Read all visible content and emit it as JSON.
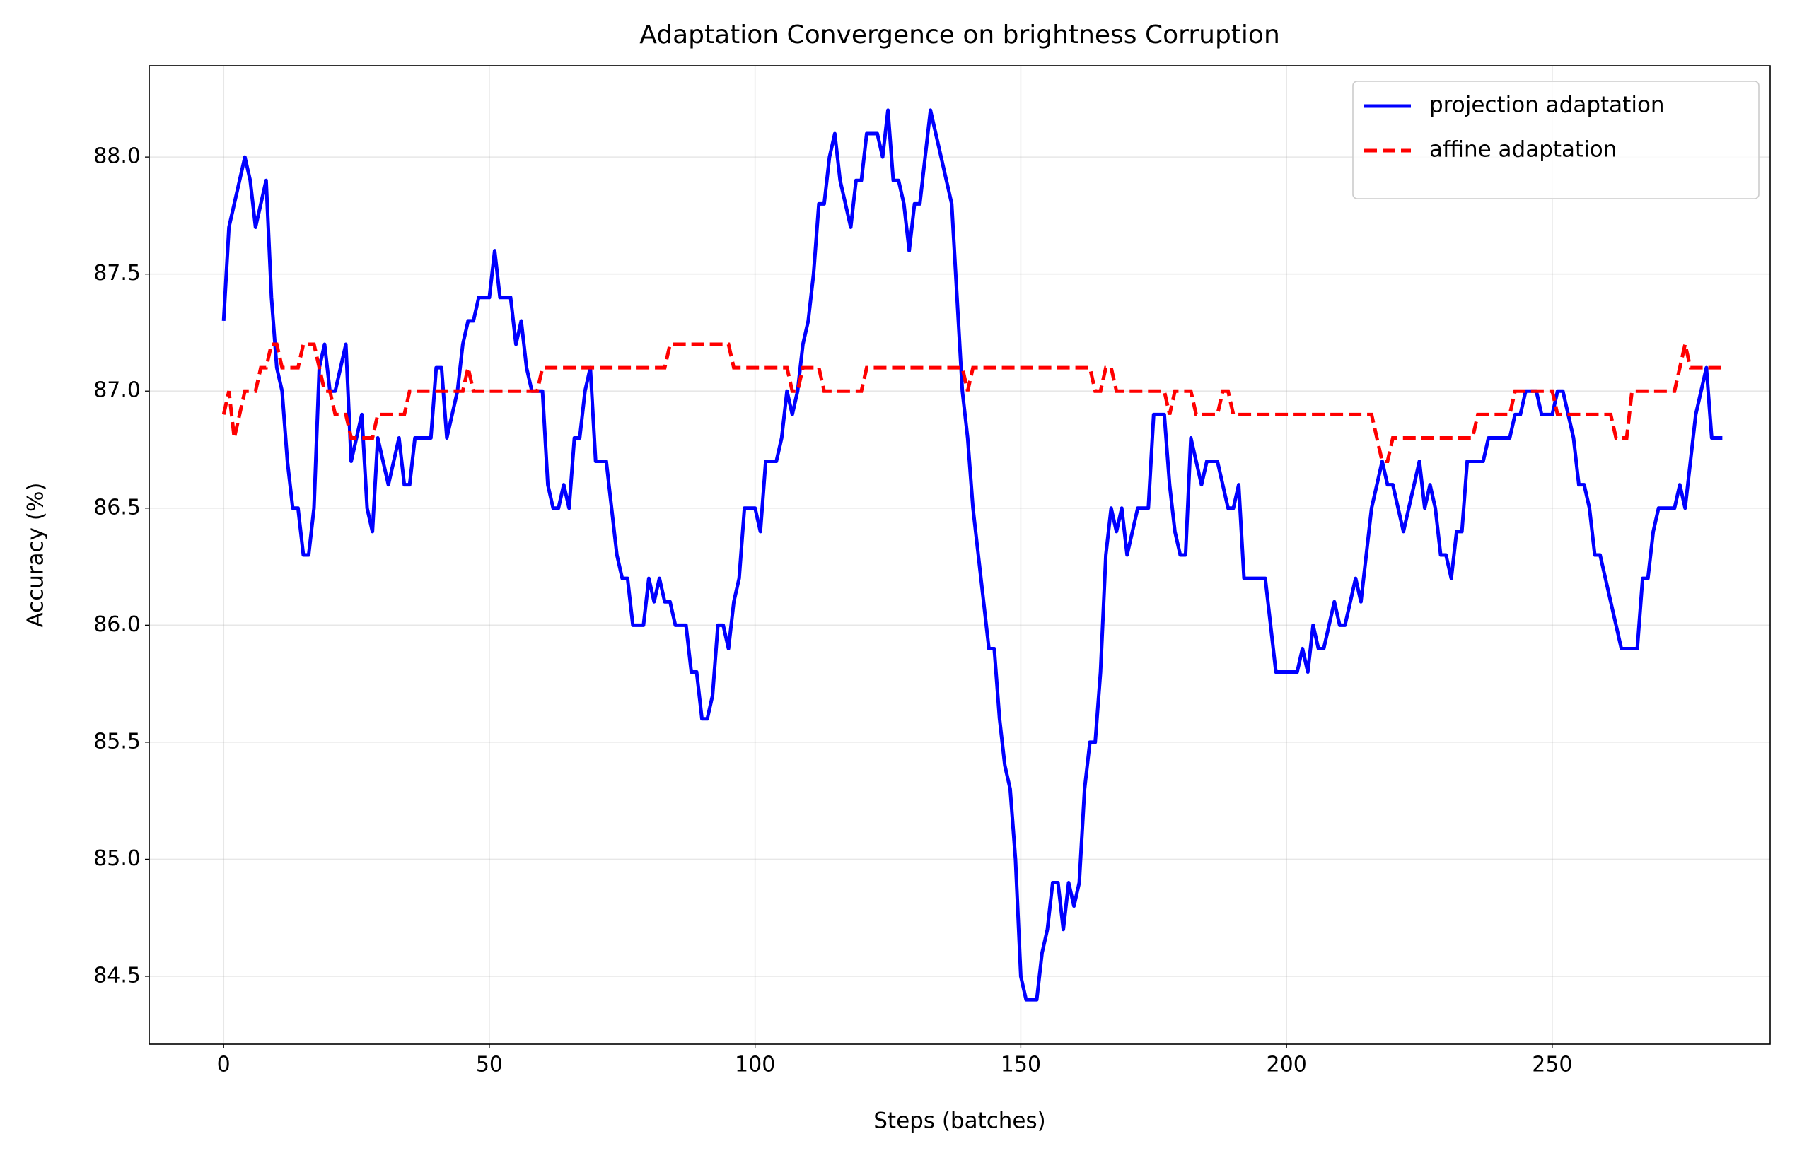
{
  "chart_data": {
    "type": "line",
    "title": "Adaptation Convergence on brightness Corruption",
    "xlabel": "Steps (batches)",
    "ylabel": "Accuracy (%)",
    "x": [
      0,
      1,
      2,
      3,
      4,
      5,
      6,
      7,
      8,
      9,
      10,
      11,
      12,
      13,
      14,
      15,
      16,
      17,
      18,
      19,
      20,
      21,
      22,
      23,
      24,
      25,
      26,
      27,
      28,
      29,
      30,
      31,
      32,
      33,
      34,
      35,
      36,
      37,
      38,
      39,
      40,
      41,
      42,
      43,
      44,
      45,
      46,
      47,
      48,
      49,
      50,
      51,
      52,
      53,
      54,
      55,
      56,
      57,
      58,
      59,
      60,
      61,
      62,
      63,
      64,
      65,
      66,
      67,
      68,
      69,
      70,
      71,
      72,
      73,
      74,
      75,
      76,
      77,
      78,
      79,
      80,
      81,
      82,
      83,
      84,
      85,
      86,
      87,
      88,
      89,
      90,
      91,
      92,
      93,
      94,
      95,
      96,
      97,
      98,
      99,
      100,
      101,
      102,
      103,
      104,
      105,
      106,
      107,
      108,
      109,
      110,
      111,
      112,
      113,
      114,
      115,
      116,
      117,
      118,
      119,
      120,
      121,
      122,
      123,
      124,
      125,
      126,
      127,
      128,
      129,
      130,
      131,
      132,
      133,
      134,
      135,
      136,
      137,
      138,
      139,
      140,
      141,
      142,
      143,
      144,
      145,
      146,
      147,
      148,
      149,
      150,
      151,
      152,
      153,
      154,
      155,
      156,
      157,
      158,
      159,
      160,
      161,
      162,
      163,
      164,
      165,
      166,
      167,
      168,
      169,
      170,
      171,
      172,
      173,
      174,
      175,
      176,
      177,
      178,
      179,
      180,
      181,
      182,
      183,
      184,
      185,
      186,
      187,
      188,
      189,
      190,
      191,
      192,
      193,
      194,
      195,
      196,
      197,
      198,
      199,
      200,
      201,
      202,
      203,
      204,
      205,
      206,
      207,
      208,
      209,
      210,
      211,
      212,
      213,
      214,
      215,
      216,
      217,
      218,
      219,
      220,
      221,
      222,
      223,
      224,
      225,
      226,
      227,
      228,
      229,
      230,
      231,
      232,
      233,
      234,
      235,
      236,
      237,
      238,
      239,
      240,
      241,
      242,
      243,
      244,
      245,
      246,
      247,
      248,
      249,
      250,
      251,
      252,
      253,
      254,
      255,
      256,
      257,
      258,
      259,
      260,
      261,
      262,
      263,
      264,
      265,
      266,
      267,
      268,
      269,
      270,
      271,
      272,
      273,
      274,
      275,
      276,
      277,
      278,
      279,
      280,
      281,
      282
    ],
    "series": [
      {
        "name": "projection adaptation",
        "color": "#0000ff",
        "dash": "solid",
        "values": [
          87.3,
          87.7,
          87.8,
          87.9,
          88.0,
          87.9,
          87.7,
          87.8,
          87.9,
          87.4,
          87.1,
          87.0,
          86.7,
          86.5,
          86.5,
          86.3,
          86.3,
          86.5,
          87.1,
          87.2,
          87.0,
          87.0,
          87.1,
          87.2,
          86.7,
          86.8,
          86.9,
          86.5,
          86.4,
          86.8,
          86.7,
          86.6,
          86.7,
          86.8,
          86.6,
          86.6,
          86.8,
          86.8,
          86.8,
          86.8,
          87.1,
          87.1,
          86.8,
          86.9,
          87.0,
          87.2,
          87.3,
          87.3,
          87.4,
          87.4,
          87.4,
          87.6,
          87.4,
          87.4,
          87.4,
          87.2,
          87.3,
          87.1,
          87.0,
          87.0,
          87.0,
          86.6,
          86.5,
          86.5,
          86.6,
          86.5,
          86.8,
          86.8,
          87.0,
          87.1,
          86.7,
          86.7,
          86.7,
          86.5,
          86.3,
          86.2,
          86.2,
          86.0,
          86.0,
          86.0,
          86.2,
          86.1,
          86.2,
          86.1,
          86.1,
          86.0,
          86.0,
          86.0,
          85.8,
          85.8,
          85.6,
          85.6,
          85.7,
          86.0,
          86.0,
          85.9,
          86.1,
          86.2,
          86.5,
          86.5,
          86.5,
          86.4,
          86.7,
          86.7,
          86.7,
          86.8,
          87.0,
          86.9,
          87.0,
          87.2,
          87.3,
          87.5,
          87.8,
          87.8,
          88.0,
          88.1,
          87.9,
          87.8,
          87.7,
          87.9,
          87.9,
          88.1,
          88.1,
          88.1,
          88.0,
          88.2,
          87.9,
          87.9,
          87.8,
          87.6,
          87.8,
          87.8,
          88.0,
          88.2,
          88.1,
          88.0,
          87.9,
          87.8,
          87.4,
          87.0,
          86.8,
          86.5,
          86.3,
          86.1,
          85.9,
          85.9,
          85.6,
          85.4,
          85.3,
          85.0,
          84.5,
          84.4,
          84.4,
          84.4,
          84.6,
          84.7,
          84.9,
          84.9,
          84.7,
          84.9,
          84.8,
          84.9,
          85.3,
          85.5,
          85.5,
          85.8,
          86.3,
          86.5,
          86.4,
          86.5,
          86.3,
          86.4,
          86.5,
          86.5,
          86.5,
          86.9,
          86.9,
          86.9,
          86.6,
          86.4,
          86.3,
          86.3,
          86.8,
          86.7,
          86.6,
          86.7,
          86.7,
          86.7,
          86.6,
          86.5,
          86.5,
          86.6,
          86.2,
          86.2,
          86.2,
          86.2,
          86.2,
          86.0,
          85.8,
          85.8,
          85.8,
          85.8,
          85.8,
          85.9,
          85.8,
          86.0,
          85.9,
          85.9,
          86.0,
          86.1,
          86.0,
          86.0,
          86.1,
          86.2,
          86.1,
          86.3,
          86.5,
          86.6,
          86.7,
          86.6,
          86.6,
          86.5,
          86.4,
          86.5,
          86.6,
          86.7,
          86.5,
          86.6,
          86.5,
          86.3,
          86.3,
          86.2,
          86.4,
          86.4,
          86.7,
          86.7,
          86.7,
          86.7,
          86.8,
          86.8,
          86.8,
          86.8,
          86.8,
          86.9,
          86.9,
          87.0,
          87.0,
          87.0,
          86.9,
          86.9,
          86.9,
          87.0,
          87.0,
          86.9,
          86.8,
          86.6,
          86.6,
          86.5,
          86.3,
          86.3,
          86.2,
          86.1,
          86.0,
          85.9,
          85.9,
          85.9,
          85.9,
          86.2,
          86.2,
          86.4,
          86.5,
          86.5,
          86.5,
          86.5,
          86.6,
          86.5,
          86.7,
          86.9,
          87.0,
          87.1,
          86.8,
          86.8,
          86.8
        ]
      },
      {
        "name": "affine adaptation",
        "color": "#ff0000",
        "dash": "dashed",
        "values": [
          86.9,
          87.0,
          86.8,
          86.9,
          87.0,
          87.0,
          87.0,
          87.1,
          87.1,
          87.2,
          87.2,
          87.1,
          87.1,
          87.1,
          87.1,
          87.2,
          87.2,
          87.2,
          87.1,
          87.0,
          87.0,
          86.9,
          86.9,
          86.9,
          86.8,
          86.8,
          86.8,
          86.8,
          86.8,
          86.9,
          86.9,
          86.9,
          86.9,
          86.9,
          86.9,
          87.0,
          87.0,
          87.0,
          87.0,
          87.0,
          87.0,
          87.0,
          87.0,
          87.0,
          87.0,
          87.0,
          87.1,
          87.0,
          87.0,
          87.0,
          87.0,
          87.0,
          87.0,
          87.0,
          87.0,
          87.0,
          87.0,
          87.0,
          87.0,
          87.0,
          87.1,
          87.1,
          87.1,
          87.1,
          87.1,
          87.1,
          87.1,
          87.1,
          87.1,
          87.1,
          87.1,
          87.1,
          87.1,
          87.1,
          87.1,
          87.1,
          87.1,
          87.1,
          87.1,
          87.1,
          87.1,
          87.1,
          87.1,
          87.1,
          87.2,
          87.2,
          87.2,
          87.2,
          87.2,
          87.2,
          87.2,
          87.2,
          87.2,
          87.2,
          87.2,
          87.2,
          87.1,
          87.1,
          87.1,
          87.1,
          87.1,
          87.1,
          87.1,
          87.1,
          87.1,
          87.1,
          87.1,
          87.0,
          87.0,
          87.1,
          87.1,
          87.1,
          87.1,
          87.0,
          87.0,
          87.0,
          87.0,
          87.0,
          87.0,
          87.0,
          87.0,
          87.1,
          87.1,
          87.1,
          87.1,
          87.1,
          87.1,
          87.1,
          87.1,
          87.1,
          87.1,
          87.1,
          87.1,
          87.1,
          87.1,
          87.1,
          87.1,
          87.1,
          87.1,
          87.1,
          87.0,
          87.1,
          87.1,
          87.1,
          87.1,
          87.1,
          87.1,
          87.1,
          87.1,
          87.1,
          87.1,
          87.1,
          87.1,
          87.1,
          87.1,
          87.1,
          87.1,
          87.1,
          87.1,
          87.1,
          87.1,
          87.1,
          87.1,
          87.1,
          87.0,
          87.0,
          87.1,
          87.1,
          87.0,
          87.0,
          87.0,
          87.0,
          87.0,
          87.0,
          87.0,
          87.0,
          87.0,
          87.0,
          86.9,
          87.0,
          87.0,
          87.0,
          87.0,
          86.9,
          86.9,
          86.9,
          86.9,
          86.9,
          87.0,
          87.0,
          86.9,
          86.9,
          86.9,
          86.9,
          86.9,
          86.9,
          86.9,
          86.9,
          86.9,
          86.9,
          86.9,
          86.9,
          86.9,
          86.9,
          86.9,
          86.9,
          86.9,
          86.9,
          86.9,
          86.9,
          86.9,
          86.9,
          86.9,
          86.9,
          86.9,
          86.9,
          86.9,
          86.8,
          86.7,
          86.7,
          86.8,
          86.8,
          86.8,
          86.8,
          86.8,
          86.8,
          86.8,
          86.8,
          86.8,
          86.8,
          86.8,
          86.8,
          86.8,
          86.8,
          86.8,
          86.8,
          86.9,
          86.9,
          86.9,
          86.9,
          86.9,
          86.9,
          86.9,
          87.0,
          87.0,
          87.0,
          87.0,
          87.0,
          87.0,
          87.0,
          87.0,
          86.9,
          86.9,
          86.9,
          86.9,
          86.9,
          86.9,
          86.9,
          86.9,
          86.9,
          86.9,
          86.9,
          86.8,
          86.8,
          86.8,
          87.0,
          87.0,
          87.0,
          87.0,
          87.0,
          87.0,
          87.0,
          87.0,
          87.0,
          87.1,
          87.2,
          87.1,
          87.1,
          87.1,
          87.1,
          87.1,
          87.1,
          87.1
        ]
      }
    ],
    "xlim": [
      -14,
      291
    ],
    "ylim": [
      84.21,
      88.39
    ],
    "xticks": [
      0,
      50,
      100,
      150,
      200,
      250
    ],
    "yticks": [
      84.5,
      {
        "value": 85,
        "label": "85.0"
      },
      85.5,
      {
        "value": 86,
        "label": "86.0"
      },
      86.5,
      {
        "value": 87,
        "label": "87.0"
      },
      87.5,
      {
        "value": 88,
        "label": "88.0"
      }
    ],
    "grid": true,
    "legend": "upper-right"
  }
}
